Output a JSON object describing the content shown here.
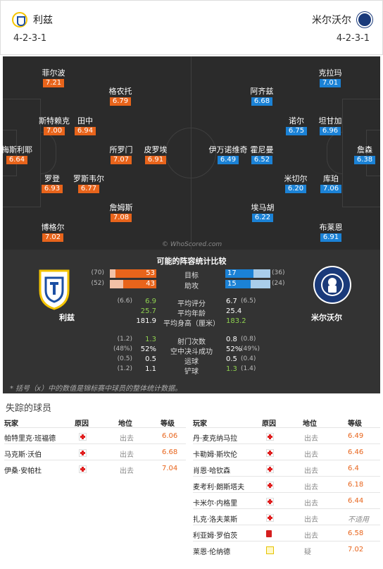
{
  "home": {
    "name": "利兹",
    "formation": "4-2-3-1",
    "players": [
      {
        "name": "菲尔波",
        "rating": "7.21"
      },
      {
        "name": "格农托",
        "rating": "6.79"
      },
      {
        "name": "斯特赖克",
        "rating": "7.00"
      },
      {
        "name": "田中",
        "rating": "6.94"
      },
      {
        "name": "梅斯利耶",
        "rating": "6.64"
      },
      {
        "name": "所罗门",
        "rating": "7.07"
      },
      {
        "name": "皮罗埃",
        "rating": "6.91"
      },
      {
        "name": "罗登",
        "rating": "6.93"
      },
      {
        "name": "罗斯韦尔",
        "rating": "6.77"
      },
      {
        "name": "詹姆斯",
        "rating": "7.08"
      },
      {
        "name": "博格尔",
        "rating": "7.02"
      }
    ]
  },
  "away": {
    "name": "米尔沃尔",
    "formation": "4-2-3-1",
    "players": [
      {
        "name": "克拉玛",
        "rating": "7.01"
      },
      {
        "name": "阿齐兹",
        "rating": "6.68"
      },
      {
        "name": "诺尔",
        "rating": "6.75"
      },
      {
        "name": "坦甘加",
        "rating": "6.96"
      },
      {
        "name": "伊万诺维奇",
        "rating": "6.49"
      },
      {
        "name": "霍尼曼",
        "rating": "6.52"
      },
      {
        "name": "詹森",
        "rating": "6.38"
      },
      {
        "name": "米切尔",
        "rating": "6.20"
      },
      {
        "name": "库珀",
        "rating": "7.06"
      },
      {
        "name": "埃马胡",
        "rating": "6.22"
      },
      {
        "name": "布莱恩",
        "rating": "6.91"
      }
    ]
  },
  "watermark": "© WhoScored.com",
  "stats": {
    "title": "可能的阵容统计比较",
    "bars": [
      {
        "label": "目标",
        "home": "53",
        "home_prev": "(70)",
        "away": "17",
        "away_prev": "(36)",
        "home_frac": 0.53,
        "away_frac": 0.17
      },
      {
        "label": "助攻",
        "home": "43",
        "home_prev": "(52)",
        "away": "15",
        "away_prev": "(24)",
        "home_frac": 0.43,
        "away_frac": 0.15
      }
    ],
    "rows": [
      {
        "label": "平均评分",
        "home": "6.9",
        "home_prev": "(6.6)",
        "away": "6.7",
        "away_prev": "(6.5)",
        "home_green": true,
        "away_green": false
      },
      {
        "label": "平均年龄",
        "home": "25.7",
        "home_prev": "",
        "away": "25.4",
        "away_prev": "",
        "home_green": true,
        "away_green": false
      },
      {
        "label": "平均身高（厘米）",
        "home": "181.9",
        "home_prev": "",
        "away": "183.2",
        "away_prev": "",
        "home_green": false,
        "away_green": true
      },
      {
        "label": "射门次数",
        "home": "1.3",
        "home_prev": "(1.2)",
        "away": "0.8",
        "away_prev": "(0.8)",
        "home_green": true,
        "away_green": false
      },
      {
        "label": "空中决斗成功",
        "home": "52%",
        "home_prev": "(48%)",
        "away": "52%",
        "away_prev": "(49%)",
        "home_green": false,
        "away_green": false
      },
      {
        "label": "运球",
        "home": "0.5",
        "home_prev": "(0.5)",
        "away": "0.5",
        "away_prev": "(0.4)",
        "home_green": false,
        "away_green": false
      },
      {
        "label": "铲球",
        "home": "1.1",
        "home_prev": "(1.2)",
        "away": "1.3",
        "away_prev": "(1.4)",
        "home_green": false,
        "away_green": true
      }
    ],
    "note": "* 括号（x）中的数值是锦标赛中球员的整体统计数据。"
  },
  "missing": {
    "title": "失踪的球员",
    "headers": {
      "player": "玩家",
      "reason": "原因",
      "status": "地位",
      "rating": "等级"
    },
    "home": [
      {
        "name": "帕特里克·班福德",
        "reason": "injury",
        "status": "出去",
        "rating": "6.06"
      },
      {
        "name": "马克斯·沃伯",
        "reason": "injury",
        "status": "出去",
        "rating": "6.68"
      },
      {
        "name": "伊桑·安帕杜",
        "reason": "injury",
        "status": "出去",
        "rating": "7.04"
      }
    ],
    "away": [
      {
        "name": "丹·麦克纳马拉",
        "reason": "injury",
        "status": "出去",
        "rating": "6.49"
      },
      {
        "name": "卡勒姆·斯坎伦",
        "reason": "injury",
        "status": "出去",
        "rating": "6.46"
      },
      {
        "name": "肖恩·哈钦森",
        "reason": "injury",
        "status": "出去",
        "rating": "6.4"
      },
      {
        "name": "麦考利·朗斯塔夫",
        "reason": "injury",
        "status": "出去",
        "rating": "6.18"
      },
      {
        "name": "卡米尔·内格里",
        "reason": "injury",
        "status": "出去",
        "rating": "6.44"
      },
      {
        "name": "扎克·洛夫莱斯",
        "reason": "injury",
        "status": "出去",
        "rating": "不适用"
      },
      {
        "name": "利亚姆·罗伯茨",
        "reason": "red-card",
        "status": "出去",
        "rating": "6.58"
      },
      {
        "name": "莱恩·伦纳德",
        "reason": "doubtful",
        "status": "疑",
        "rating": "7.02"
      }
    ]
  }
}
